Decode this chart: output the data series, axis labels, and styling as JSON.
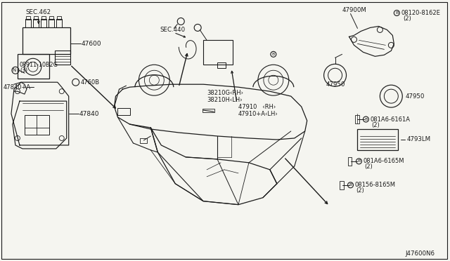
{
  "bg_color": "#f5f5f0",
  "line_color": "#1a1a1a",
  "text_color": "#1a1a1a",
  "diagram_id": "J47600N6",
  "font_size": 6.0,
  "labels": {
    "sec462": "SEC.462",
    "p47600": "47600",
    "p4760b": "4760B",
    "p47840a": "47840+A",
    "p47840": "47840",
    "p08911": "08911-10B2G",
    "p08911_qty": "(3)",
    "p47900h": "47900M",
    "p08120": "08120-8162E",
    "p08120_qty": "(2)",
    "p47950a": "47950",
    "p47950b": "47950",
    "p081a6_6161a": "081A6-6161A",
    "p081a6_6161a_qty": "(2)",
    "p4793lm": "4793LM",
    "p081a6_6165m": "081A6-6165M",
    "p081a6_6165m_qty": "(2)",
    "p08156": "08156-8165M",
    "p08156_qty": "(2)",
    "p47910rh": "47910   ‹RH›",
    "p47910lh": "47910+A‹LH›",
    "p38210g": "38210G‹RH›",
    "p38210h": "38210H‹LH›",
    "sec440": "SEC.440"
  }
}
